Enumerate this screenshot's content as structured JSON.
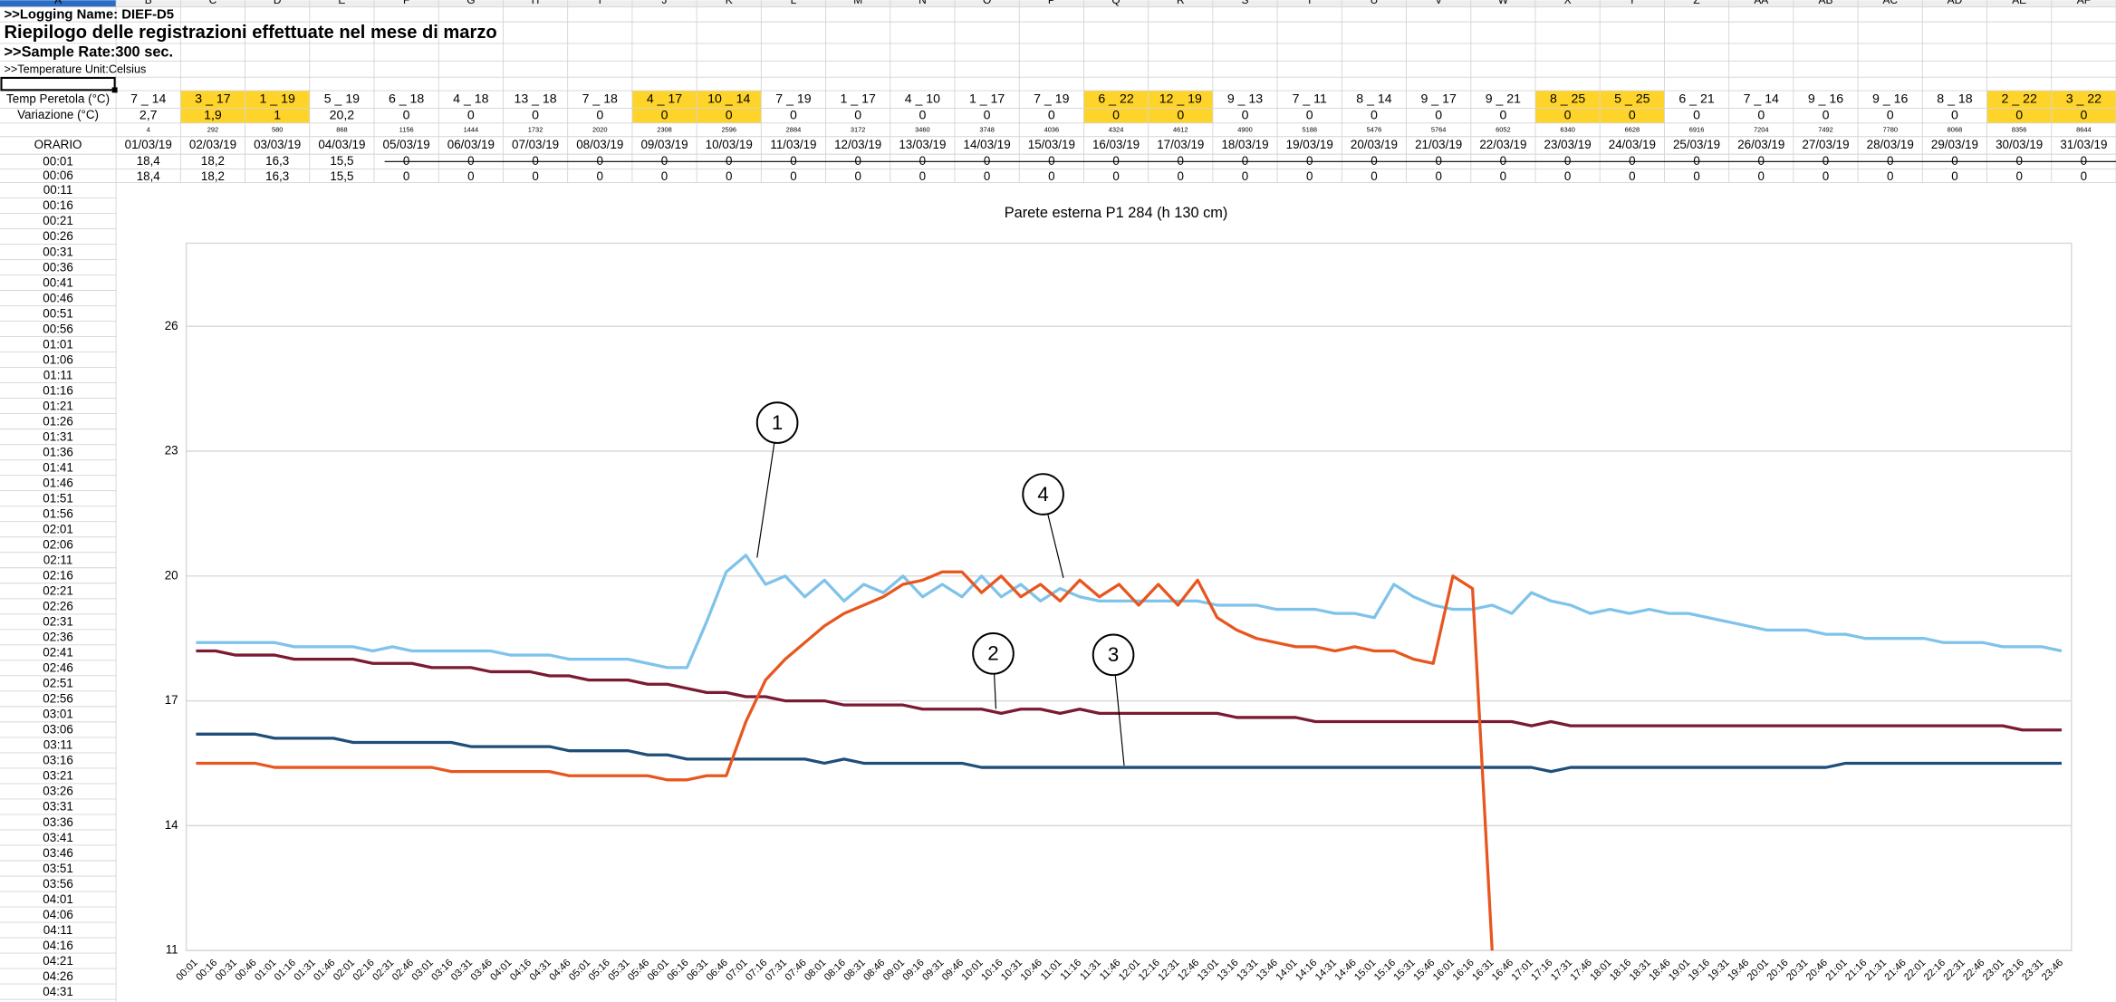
{
  "sheet": {
    "columns": [
      "A",
      "B",
      "C",
      "D",
      "E",
      "F",
      "G",
      "H",
      "I",
      "J",
      "K",
      "L",
      "M",
      "N",
      "O",
      "P",
      "Q",
      "R",
      "S",
      "T",
      "U",
      "V",
      "W",
      "X",
      "Y",
      "Z",
      "AA",
      "AB",
      "AC",
      "AD",
      "AE",
      "AF"
    ],
    "logging_name": ">>Logging Name: DIEF-D5",
    "title": "Riepilogo delle registrazioni effettuate nel mese di marzo",
    "sample_rate": ">>Sample Rate:300 sec.",
    "temperature_unit": ">>Temperature Unit:Celsius",
    "row_labels": [
      "Temp Peretola (°C)",
      "Variazione (°C)",
      "ORARIO"
    ],
    "days": [
      {
        "range": "7 _ 14",
        "variation": "2,7",
        "index": 4,
        "date": "01/03/19",
        "highlight": false,
        "r1": "18,4",
        "r2": "18,4"
      },
      {
        "range": "3 _ 17",
        "variation": "1,9",
        "index": 292,
        "date": "02/03/19",
        "highlight": true,
        "r1": "18,2",
        "r2": "18,2"
      },
      {
        "range": "1 _ 19",
        "variation": "1",
        "index": 580,
        "date": "03/03/19",
        "highlight": true,
        "r1": "16,3",
        "r2": "16,3"
      },
      {
        "range": "5 _ 19",
        "variation": "20,2",
        "index": 868,
        "date": "04/03/19",
        "highlight": false,
        "r1": "15,5",
        "r2": "15,5"
      },
      {
        "range": "6 _ 18",
        "variation": "0",
        "index": 1156,
        "date": "05/03/19",
        "highlight": false,
        "r1": "0",
        "r2": "0"
      },
      {
        "range": "4 _ 18",
        "variation": "0",
        "index": 1444,
        "date": "06/03/19",
        "highlight": false,
        "r1": "0",
        "r2": "0"
      },
      {
        "range": "13 _ 18",
        "variation": "0",
        "index": 1732,
        "date": "07/03/19",
        "highlight": false,
        "r1": "0",
        "r2": "0"
      },
      {
        "range": "7 _ 18",
        "variation": "0",
        "index": 2020,
        "date": "08/03/19",
        "highlight": false,
        "r1": "0",
        "r2": "0"
      },
      {
        "range": "4 _ 17",
        "variation": "0",
        "index": 2308,
        "date": "09/03/19",
        "highlight": true,
        "r1": "0",
        "r2": "0"
      },
      {
        "range": "10 _ 14",
        "variation": "0",
        "index": 2596,
        "date": "10/03/19",
        "highlight": true,
        "r1": "0",
        "r2": "0"
      },
      {
        "range": "7 _ 19",
        "variation": "0",
        "index": 2884,
        "date": "11/03/19",
        "highlight": false,
        "r1": "0",
        "r2": "0"
      },
      {
        "range": "1 _ 17",
        "variation": "0",
        "index": 3172,
        "date": "12/03/19",
        "highlight": false,
        "r1": "0",
        "r2": "0"
      },
      {
        "range": "4 _ 10",
        "variation": "0",
        "index": 3460,
        "date": "13/03/19",
        "highlight": false,
        "r1": "0",
        "r2": "0"
      },
      {
        "range": "1 _ 17",
        "variation": "0",
        "index": 3748,
        "date": "14/03/19",
        "highlight": false,
        "r1": "0",
        "r2": "0"
      },
      {
        "range": "7 _ 19",
        "variation": "0",
        "index": 4036,
        "date": "15/03/19",
        "highlight": false,
        "r1": "0",
        "r2": "0"
      },
      {
        "range": "6 _ 22",
        "variation": "0",
        "index": 4324,
        "date": "16/03/19",
        "highlight": true,
        "r1": "0",
        "r2": "0"
      },
      {
        "range": "12 _ 19",
        "variation": "0",
        "index": 4612,
        "date": "17/03/19",
        "highlight": true,
        "r1": "0",
        "r2": "0"
      },
      {
        "range": "9 _ 13",
        "variation": "0",
        "index": 4900,
        "date": "18/03/19",
        "highlight": false,
        "r1": "0",
        "r2": "0"
      },
      {
        "range": "7 _ 11",
        "variation": "0",
        "index": 5188,
        "date": "19/03/19",
        "highlight": false,
        "r1": "0",
        "r2": "0"
      },
      {
        "range": "8 _ 14",
        "variation": "0",
        "index": 5476,
        "date": "20/03/19",
        "highlight": false,
        "r1": "0",
        "r2": "0"
      },
      {
        "range": "9 _ 17",
        "variation": "0",
        "index": 5764,
        "date": "21/03/19",
        "highlight": false,
        "r1": "0",
        "r2": "0"
      },
      {
        "range": "9 _ 21",
        "variation": "0",
        "index": 6052,
        "date": "22/03/19",
        "highlight": false,
        "r1": "0",
        "r2": "0"
      },
      {
        "range": "8 _ 25",
        "variation": "0",
        "index": 6340,
        "date": "23/03/19",
        "highlight": true,
        "r1": "0",
        "r2": "0"
      },
      {
        "range": "5 _ 25",
        "variation": "0",
        "index": 6628,
        "date": "24/03/19",
        "highlight": true,
        "r1": "0",
        "r2": "0"
      },
      {
        "range": "6 _ 21",
        "variation": "0",
        "index": 6916,
        "date": "25/03/19",
        "highlight": false,
        "r1": "0",
        "r2": "0"
      },
      {
        "range": "7 _ 14",
        "variation": "0",
        "index": 7204,
        "date": "26/03/19",
        "highlight": false,
        "r1": "0",
        "r2": "0"
      },
      {
        "range": "9 _ 16",
        "variation": "0",
        "index": 7492,
        "date": "27/03/19",
        "highlight": false,
        "r1": "0",
        "r2": "0"
      },
      {
        "range": "9 _ 16",
        "variation": "0",
        "index": 7780,
        "date": "28/03/19",
        "highlight": false,
        "r1": "0",
        "r2": "0"
      },
      {
        "range": "8 _ 18",
        "variation": "0",
        "index": 8068,
        "date": "29/03/19",
        "highlight": false,
        "r1": "0",
        "r2": "0"
      },
      {
        "range": "2 _ 22",
        "variation": "0",
        "index": 8356,
        "date": "30/03/19",
        "highlight": true,
        "r1": "0",
        "r2": "0"
      },
      {
        "range": "3 _ 22",
        "variation": "0",
        "index": 8644,
        "date": "31/03/19",
        "highlight": true,
        "r1": "0",
        "r2": "0"
      }
    ],
    "time_rows": [
      "00:01",
      "00:06",
      "00:11",
      "00:16",
      "00:21",
      "00:26",
      "00:31",
      "00:36",
      "00:41",
      "00:46",
      "00:51",
      "00:56",
      "01:01",
      "01:06",
      "01:11",
      "01:16",
      "01:21",
      "01:26",
      "01:31",
      "01:36",
      "01:41",
      "01:46",
      "01:51",
      "01:56",
      "02:01",
      "02:06",
      "02:11",
      "02:16",
      "02:21",
      "02:26",
      "02:31",
      "02:36",
      "02:41",
      "02:46",
      "02:51",
      "02:56",
      "03:01",
      "03:06",
      "03:11",
      "03:16",
      "03:21",
      "03:26",
      "03:31",
      "03:36",
      "03:41",
      "03:46",
      "03:51",
      "03:56",
      "04:01",
      "04:06",
      "04:11",
      "04:16",
      "04:21",
      "04:26",
      "04:31"
    ]
  },
  "chart_data": {
    "type": "line",
    "title": "Parete esterna P1 284 (h 130 cm)",
    "categories": [
      "00:01",
      "00:16",
      "00:31",
      "00:46",
      "01:01",
      "01:16",
      "01:31",
      "01:46",
      "02:01",
      "02:16",
      "02:31",
      "02:46",
      "03:01",
      "03:16",
      "03:31",
      "03:46",
      "04:01",
      "04:16",
      "04:31",
      "04:46",
      "05:01",
      "05:16",
      "05:31",
      "05:46",
      "06:01",
      "06:16",
      "06:31",
      "06:46",
      "07:01",
      "07:16",
      "07:31",
      "07:46",
      "08:01",
      "08:16",
      "08:31",
      "08:46",
      "09:01",
      "09:16",
      "09:31",
      "09:46",
      "10:01",
      "10:16",
      "10:31",
      "10:46",
      "11:01",
      "11:16",
      "11:31",
      "11:46",
      "12:01",
      "12:16",
      "12:31",
      "12:46",
      "13:01",
      "13:16",
      "13:31",
      "13:46",
      "14:01",
      "14:16",
      "14:31",
      "14:46",
      "15:01",
      "15:16",
      "15:31",
      "15:46",
      "16:01",
      "16:16",
      "16:31",
      "16:46",
      "17:01",
      "17:16",
      "17:31",
      "17:46",
      "18:01",
      "18:16",
      "18:31",
      "18:46",
      "19:01",
      "19:16",
      "19:31",
      "19:46",
      "20:01",
      "20:16",
      "20:31",
      "20:46",
      "21:01",
      "21:16",
      "21:31",
      "21:46",
      "22:01",
      "22:16",
      "22:31",
      "22:46",
      "23:01",
      "23:16",
      "23:31",
      "23:46"
    ],
    "series": [
      {
        "color": "#7fc3ea",
        "values": [
          18.4,
          18.4,
          18.4,
          18.4,
          18.4,
          18.3,
          18.3,
          18.3,
          18.3,
          18.2,
          18.3,
          18.2,
          18.2,
          18.2,
          18.2,
          18.2,
          18.1,
          18.1,
          18.1,
          18.0,
          18.0,
          18.0,
          18.0,
          17.9,
          17.8,
          17.8,
          18.9,
          20.1,
          20.5,
          19.8,
          20.0,
          19.5,
          19.9,
          19.4,
          19.8,
          19.6,
          20.0,
          19.5,
          19.8,
          19.5,
          20.0,
          19.5,
          19.8,
          19.4,
          19.7,
          19.5,
          19.4,
          19.4,
          19.4,
          19.4,
          19.4,
          19.4,
          19.3,
          19.3,
          19.3,
          19.2,
          19.2,
          19.2,
          19.1,
          19.1,
          19.0,
          19.8,
          19.5,
          19.3,
          19.2,
          19.2,
          19.3,
          19.1,
          19.6,
          19.4,
          19.3,
          19.1,
          19.2,
          19.1,
          19.2,
          19.1,
          19.1,
          19.0,
          18.9,
          18.8,
          18.7,
          18.7,
          18.7,
          18.6,
          18.6,
          18.5,
          18.5,
          18.5,
          18.5,
          18.4,
          18.4,
          18.4,
          18.3,
          18.3,
          18.3,
          18.2
        ]
      },
      {
        "color": "#7b1a33",
        "values": [
          18.2,
          18.2,
          18.1,
          18.1,
          18.1,
          18.0,
          18.0,
          18.0,
          18.0,
          17.9,
          17.9,
          17.9,
          17.8,
          17.8,
          17.8,
          17.7,
          17.7,
          17.7,
          17.6,
          17.6,
          17.5,
          17.5,
          17.5,
          17.4,
          17.4,
          17.3,
          17.2,
          17.2,
          17.1,
          17.1,
          17.0,
          17.0,
          17.0,
          16.9,
          16.9,
          16.9,
          16.9,
          16.8,
          16.8,
          16.8,
          16.8,
          16.7,
          16.8,
          16.8,
          16.7,
          16.8,
          16.7,
          16.7,
          16.7,
          16.7,
          16.7,
          16.7,
          16.7,
          16.6,
          16.6,
          16.6,
          16.6,
          16.5,
          16.5,
          16.5,
          16.5,
          16.5,
          16.5,
          16.5,
          16.5,
          16.5,
          16.5,
          16.5,
          16.4,
          16.5,
          16.4,
          16.4,
          16.4,
          16.4,
          16.4,
          16.4,
          16.4,
          16.4,
          16.4,
          16.4,
          16.4,
          16.4,
          16.4,
          16.4,
          16.4,
          16.4,
          16.4,
          16.4,
          16.4,
          16.4,
          16.4,
          16.4,
          16.4,
          16.3,
          16.3,
          16.3
        ]
      },
      {
        "color": "#1f4e79",
        "values": [
          16.2,
          16.2,
          16.2,
          16.2,
          16.1,
          16.1,
          16.1,
          16.1,
          16.0,
          16.0,
          16.0,
          16.0,
          16.0,
          16.0,
          15.9,
          15.9,
          15.9,
          15.9,
          15.9,
          15.8,
          15.8,
          15.8,
          15.8,
          15.7,
          15.7,
          15.6,
          15.6,
          15.6,
          15.6,
          15.6,
          15.6,
          15.6,
          15.5,
          15.6,
          15.5,
          15.5,
          15.5,
          15.5,
          15.5,
          15.5,
          15.4,
          15.4,
          15.4,
          15.4,
          15.4,
          15.4,
          15.4,
          15.4,
          15.4,
          15.4,
          15.4,
          15.4,
          15.4,
          15.4,
          15.4,
          15.4,
          15.4,
          15.4,
          15.4,
          15.4,
          15.4,
          15.4,
          15.4,
          15.4,
          15.4,
          15.4,
          15.4,
          15.4,
          15.4,
          15.3,
          15.4,
          15.4,
          15.4,
          15.4,
          15.4,
          15.4,
          15.4,
          15.4,
          15.4,
          15.4,
          15.4,
          15.4,
          15.4,
          15.4,
          15.5,
          15.5,
          15.5,
          15.5,
          15.5,
          15.5,
          15.5,
          15.5,
          15.5,
          15.5,
          15.5,
          15.5
        ]
      },
      {
        "color": "#e8561f",
        "values": [
          15.5,
          15.5,
          15.5,
          15.5,
          15.4,
          15.4,
          15.4,
          15.4,
          15.4,
          15.4,
          15.4,
          15.4,
          15.4,
          15.3,
          15.3,
          15.3,
          15.3,
          15.3,
          15.3,
          15.2,
          15.2,
          15.2,
          15.2,
          15.2,
          15.1,
          15.1,
          15.2,
          15.2,
          16.5,
          17.5,
          18.0,
          18.4,
          18.8,
          19.1,
          19.3,
          19.5,
          19.8,
          19.9,
          20.1,
          20.1,
          19.6,
          20.0,
          19.5,
          19.8,
          19.4,
          19.9,
          19.5,
          19.8,
          19.3,
          19.8,
          19.3,
          19.9,
          19.0,
          18.7,
          18.5,
          18.4,
          18.3,
          18.3,
          18.2,
          18.3,
          18.2,
          18.2,
          18.0,
          17.9,
          20.0,
          19.7,
          11,
          null,
          null,
          null,
          null,
          null,
          null,
          null,
          null,
          null,
          null,
          null,
          null,
          null,
          null,
          null,
          null,
          null,
          null,
          null,
          null,
          null,
          null,
          null,
          null,
          null,
          null,
          null,
          null,
          null
        ]
      }
    ],
    "ylim": [
      11,
      28
    ],
    "yticks": [
      11,
      14,
      17,
      20,
      23,
      26
    ],
    "grid": true,
    "annotations": [
      {
        "label": "1"
      },
      {
        "label": "4"
      },
      {
        "label": "2"
      },
      {
        "label": "3"
      }
    ]
  }
}
